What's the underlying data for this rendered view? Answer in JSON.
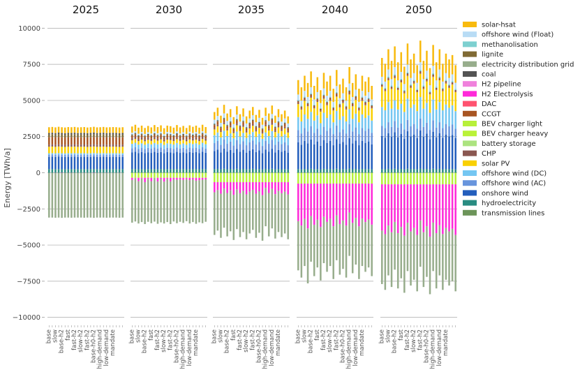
{
  "chart_data": {
    "type": "bar",
    "stacked": true,
    "ylabel": "Energy [TWh/a]",
    "ylim": [
      -10500,
      10500
    ],
    "yticks": [
      -10000,
      -7500,
      -5000,
      -2500,
      0,
      2500,
      5000,
      7500,
      10000
    ],
    "ytick_labels": [
      "−10000",
      "−7500",
      "−5000",
      "−2500",
      "0",
      "2500",
      "5000",
      "7500",
      "10000"
    ],
    "grid": true,
    "legend_position": "right",
    "panels": [
      "2025",
      "2030",
      "2035",
      "2040",
      "2050"
    ],
    "x_labels": [
      "base",
      "",
      "slow",
      "",
      "base-h2",
      "",
      "fast",
      "",
      "fast-h2",
      "",
      "slow-h2",
      "",
      "fast-h2",
      "",
      "base-h0-h2",
      "",
      "high-demand",
      "",
      "low-demand",
      "",
      "mandate",
      "",
      "",
      "",
      "base",
      "",
      "slow",
      "",
      "base-h2",
      "",
      "fast",
      "",
      "fast-h2",
      "",
      "slow-h2",
      "",
      "fast-h2",
      "",
      "base-h0-h2",
      "",
      "high-demand",
      "",
      "low-demand",
      "",
      "mandate",
      "",
      "",
      "",
      "base",
      "",
      "slow",
      "",
      "base-h2",
      "",
      "fast",
      "",
      "fast-h2",
      "",
      "slow-h2",
      "",
      "fast-h2",
      "",
      "base-h0-h2",
      "",
      "high-demand",
      "",
      "low-demand",
      "",
      "mandate",
      "",
      "",
      "",
      "base",
      "",
      "slow",
      "",
      "base-h2",
      "",
      "fast",
      "",
      "fast-h2",
      "",
      "slow-h2",
      "",
      "fast-h2",
      "",
      "base-h0-h2",
      "",
      "high-demand",
      "",
      "low-demand",
      "",
      "mandate",
      "",
      "",
      "",
      "base",
      "",
      "slow",
      "",
      "base-h2",
      "",
      "fast",
      "",
      "fast-h2",
      "",
      "slow-h2",
      "",
      "fast-h2",
      "",
      "base-h0-h2",
      "",
      "high-demand",
      "",
      "low-demand",
      "",
      "mandate",
      "",
      "",
      ""
    ],
    "legend": [
      {
        "name": "solar-hsat",
        "color": "#f8ba0e"
      },
      {
        "name": "offshore wind (Float)",
        "color": "#b8dcf5"
      },
      {
        "name": "methanolisation",
        "color": "#7dd0d0"
      },
      {
        "name": "lignite",
        "color": "#806a34"
      },
      {
        "name": "electricity distribution grid",
        "color": "#97ad8c"
      },
      {
        "name": "coal",
        "color": "#545454"
      },
      {
        "name": "H2 pipeline",
        "color": "#f081dc"
      },
      {
        "name": "H2 Electrolysis",
        "color": "#ff29d9"
      },
      {
        "name": "DAC",
        "color": "#ff5270"
      },
      {
        "name": "CCGT",
        "color": "#a85522"
      },
      {
        "name": "BEV charger light",
        "color": "#b7f03a"
      },
      {
        "name": "BEV charger heavy",
        "color": "#baf238"
      },
      {
        "name": "battery storage",
        "color": "#ace37f"
      },
      {
        "name": "CHP",
        "color": "#8a5751"
      },
      {
        "name": "solar PV",
        "color": "#f9d002"
      },
      {
        "name": "offshore wind (DC)",
        "color": "#74c6f2"
      },
      {
        "name": "offshore wind (AC)",
        "color": "#6895dd"
      },
      {
        "name": "onshore wind",
        "color": "#235ebc"
      },
      {
        "name": "hydroelectricity",
        "color": "#298c81"
      },
      {
        "name": "transmission lines",
        "color": "#6c9459"
      }
    ],
    "bars_per_panel": 24,
    "pos_components": [
      "hydroelectricity",
      "onshore wind",
      "offshore wind (AC)",
      "offshore wind (DC)",
      "solar PV",
      "CHP",
      "CCGT",
      "lignite",
      "coal",
      "methanolisation",
      "offshore wind (Float)",
      "solar-hsat"
    ],
    "neg_components": [
      "BEV charger light",
      "H2 Electrolysis",
      "electricity distribution grid"
    ],
    "panel_series": [
      {
        "year": "2025",
        "pos": {
          "hydroelectricity": 250,
          "onshore wind": 850,
          "offshore wind (AC)": 150,
          "offshore wind (DC)": 100,
          "solar PV": 450,
          "CHP": 150,
          "CCGT": 500,
          "lignite": 200,
          "coal": 100,
          "methanolisation": 0,
          "offshore wind (Float)": 0,
          "solar-hsat": 400
        },
        "neg": {
          "BEV charger light": 0,
          "H2 Electrolysis": 0,
          "electricity distribution grid": 3100
        },
        "pos_variation": [
          0,
          20,
          -10,
          30,
          0,
          -20,
          10,
          0,
          20,
          -10,
          0,
          10,
          -20,
          0,
          30,
          -10,
          0,
          20,
          -10,
          0,
          10,
          0,
          -20,
          0
        ],
        "neg_variation": [
          0,
          -20,
          10,
          0,
          20,
          -10,
          0,
          10,
          0,
          -20,
          0,
          10,
          0,
          -10,
          20,
          0,
          -10,
          0,
          10,
          0,
          -20,
          0,
          10,
          0
        ],
        "elec_variation": [
          0,
          0,
          0,
          0,
          0,
          0,
          0,
          0,
          0,
          0,
          0,
          0,
          0,
          0,
          0,
          0,
          0,
          0,
          0,
          0,
          0,
          0,
          0,
          0
        ]
      },
      {
        "year": "2030",
        "pos": {
          "hydroelectricity": 250,
          "onshore wind": 1150,
          "offshore wind (AC)": 300,
          "offshore wind (DC)": 300,
          "solar PV": 250,
          "CHP": 150,
          "CCGT": 150,
          "lignite": 50,
          "coal": 50,
          "methanolisation": 20,
          "offshore wind (Float)": 100,
          "solar-hsat": 430
        },
        "neg": {
          "BEV charger light": 350,
          "H2 Electrolysis": 150,
          "electricity distribution grid": 2950
        },
        "pos_variation": [
          0,
          120,
          -80,
          60,
          -100,
          40,
          -60,
          100,
          -40,
          80,
          -120,
          60,
          20,
          -80,
          100,
          -60,
          40,
          -100,
          80,
          -20,
          60,
          -80,
          120,
          -40
        ],
        "neg_variation": [
          0,
          -80,
          60,
          -40,
          100,
          -60,
          40,
          -100,
          80,
          -20,
          60,
          -40,
          100,
          -80,
          40,
          -60,
          20,
          -100,
          60,
          -40,
          80,
          -20,
          40,
          -60
        ],
        "elec_variation": [
          0,
          40,
          -30,
          60,
          -50,
          20,
          -40,
          80,
          -20,
          50,
          -60,
          30,
          0,
          -40,
          60,
          -30,
          20,
          -50,
          40,
          0,
          30,
          -40,
          60,
          -20
        ]
      },
      {
        "year": "2035",
        "pos": {
          "hydroelectricity": 250,
          "onshore wind": 1250,
          "offshore wind (AC)": 550,
          "offshore wind (DC)": 550,
          "solar PV": 400,
          "CHP": 100,
          "CCGT": 200,
          "lignite": 40,
          "coal": 40,
          "methanolisation": 40,
          "offshore wind (Float)": 250,
          "solar-hsat": 530
        },
        "neg": {
          "BEV charger light": 650,
          "H2 Electrolysis": 700,
          "electricity distribution grid": 2950
        },
        "pos_variation": [
          0,
          300,
          -250,
          500,
          -100,
          200,
          -350,
          400,
          -150,
          250,
          -300,
          100,
          350,
          -200,
          150,
          -400,
          300,
          -100,
          450,
          -250,
          200,
          -150,
          100,
          -300
        ],
        "neg_variation": [
          0,
          -300,
          200,
          -500,
          100,
          -250,
          350,
          -400,
          150,
          -200,
          300,
          -100,
          -350,
          200,
          -150,
          400,
          -600,
          100,
          -450,
          250,
          -200,
          150,
          -100,
          300
        ],
        "elec_variation": [
          0,
          -150,
          100,
          -250,
          50,
          -120,
          180,
          -200,
          80,
          -100,
          150,
          -50,
          -180,
          100,
          -80,
          200,
          -300,
          50,
          -220,
          120,
          -100,
          80,
          -50,
          150
        ]
      },
      {
        "year": "2040",
        "pos": {
          "hydroelectricity": 250,
          "onshore wind": 1850,
          "offshore wind (AC)": 850,
          "offshore wind (DC)": 900,
          "solar PV": 900,
          "CHP": 60,
          "CCGT": 120,
          "lignite": 0,
          "coal": 40,
          "methanolisation": 60,
          "offshore wind (Float)": 380,
          "solar-hsat": 1000
        },
        "neg": {
          "BEV charger light": 750,
          "H2 Electrolysis": 2600,
          "electricity distribution grid": 3400
        },
        "pos_variation": [
          0,
          -500,
          300,
          -200,
          600,
          -400,
          200,
          -700,
          500,
          -100,
          300,
          -600,
          700,
          -300,
          100,
          -500,
          900,
          -200,
          400,
          -600,
          300,
          -100,
          200,
          -400
        ],
        "neg_variation": [
          0,
          500,
          -300,
          900,
          -600,
          400,
          -200,
          700,
          -500,
          100,
          -300,
          600,
          -700,
          300,
          -100,
          500,
          -1000,
          200,
          -400,
          600,
          -300,
          100,
          -200,
          400
        ],
        "elec_variation": [
          0,
          200,
          -150,
          400,
          -250,
          150,
          -100,
          300,
          -200,
          50,
          -150,
          250,
          -300,
          100,
          -50,
          200,
          -400,
          80,
          -180,
          250,
          -120,
          40,
          -80,
          160
        ]
      },
      {
        "year": "2050",
        "pos": {
          "hydroelectricity": 250,
          "onshore wind": 2300,
          "offshore wind (AC)": 700,
          "offshore wind (DC)": 1300,
          "solar PV": 1400,
          "CHP": 40,
          "CCGT": 80,
          "lignite": 0,
          "coal": 40,
          "methanolisation": 80,
          "offshore wind (Float)": 450,
          "solar-hsat": 1300
        },
        "neg": {
          "BEV charger light": 800,
          "H2 Electrolysis": 3200,
          "electricity distribution grid": 3700
        },
        "pos_variation": [
          0,
          -400,
          600,
          -200,
          800,
          -300,
          400,
          -600,
          1000,
          -100,
          300,
          -500,
          1200,
          -200,
          500,
          -700,
          900,
          -300,
          600,
          -400,
          300,
          -100,
          200,
          -500
        ],
        "neg_variation": [
          0,
          400,
          -600,
          200,
          -1000,
          300,
          -400,
          600,
          -900,
          100,
          -300,
          500,
          -1200,
          200,
          -500,
          700,
          -900,
          300,
          -600,
          400,
          -300,
          100,
          -200,
          500
        ],
        "elec_variation": [
          0,
          150,
          -250,
          80,
          -400,
          120,
          -150,
          250,
          -350,
          40,
          -120,
          200,
          -500,
          80,
          -200,
          280,
          -350,
          120,
          -240,
          160,
          -120,
          40,
          -80,
          200
        ]
      }
    ]
  }
}
